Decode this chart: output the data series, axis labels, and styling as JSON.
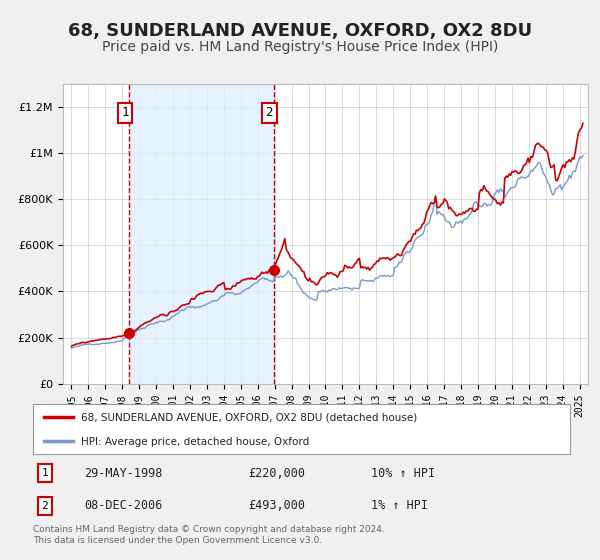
{
  "title": "68, SUNDERLAND AVENUE, OXFORD, OX2 8DU",
  "subtitle": "Price paid vs. HM Land Registry's House Price Index (HPI)",
  "title_fontsize": 13,
  "subtitle_fontsize": 10,
  "bg_color": "#f0f0f0",
  "plot_bg_color": "#ffffff",
  "grid_color": "#cccccc",
  "red_line_color": "#cc0000",
  "blue_line_color": "#7799cc",
  "shade_color": "#ddeeff",
  "marker1_x": 1998.41,
  "marker1_y": 220000,
  "marker2_x": 2006.93,
  "marker2_y": 493000,
  "vline1_x": 1998.41,
  "vline2_x": 2006.93,
  "legend_label_red": "68, SUNDERLAND AVENUE, OXFORD, OX2 8DU (detached house)",
  "legend_label_blue": "HPI: Average price, detached house, Oxford",
  "table_row1": [
    "1",
    "29-MAY-1998",
    "£220,000",
    "10% ↑ HPI"
  ],
  "table_row2": [
    "2",
    "08-DEC-2006",
    "£493,000",
    "1% ↑ HPI"
  ],
  "footer_text": "Contains HM Land Registry data © Crown copyright and database right 2024.\nThis data is licensed under the Open Government Licence v3.0.",
  "ylim": [
    0,
    1300000
  ],
  "xlim": [
    1994.5,
    2025.5
  ],
  "yticks": [
    0,
    200000,
    400000,
    600000,
    800000,
    1000000,
    1200000
  ],
  "ytick_labels": [
    "£0",
    "£200K",
    "£400K",
    "£600K",
    "£800K",
    "£1M",
    "£1.2M"
  ],
  "xticks": [
    1995,
    1996,
    1997,
    1998,
    1999,
    2000,
    2001,
    2002,
    2003,
    2004,
    2005,
    2006,
    2007,
    2008,
    2009,
    2010,
    2011,
    2012,
    2013,
    2014,
    2015,
    2016,
    2017,
    2018,
    2019,
    2020,
    2021,
    2022,
    2023,
    2024,
    2025
  ]
}
